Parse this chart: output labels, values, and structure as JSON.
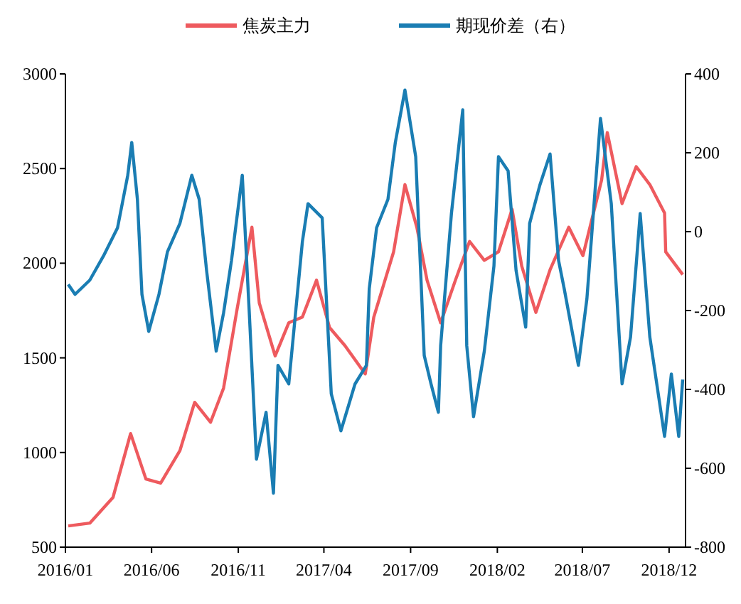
{
  "chart_data": {
    "type": "line",
    "legend": "top",
    "grid": false,
    "line_style": "solid",
    "xlim": [
      "2016-01-01",
      "2018-12-30"
    ],
    "xticks": [
      {
        "value": "2016-01",
        "label": "2016/01"
      },
      {
        "value": "2016-06",
        "label": "2016/06"
      },
      {
        "value": "2016-11",
        "label": "2016/11"
      },
      {
        "value": "2017-04",
        "label": "2017/04"
      },
      {
        "value": "2017-09",
        "label": "2017/09"
      },
      {
        "value": "2018-02",
        "label": "2018/02"
      },
      {
        "value": "2018-07",
        "label": "2018/07"
      },
      {
        "value": "2018-12",
        "label": "2018/12"
      }
    ],
    "ylim": [
      500,
      3000
    ],
    "yticks": [
      500,
      1000,
      1500,
      2000,
      2500,
      3000
    ],
    "y2lim": [
      -800,
      400
    ],
    "y2ticks": [
      -800,
      -600,
      -400,
      -200,
      0,
      200,
      400
    ],
    "series": [
      {
        "name": "焦炭主力",
        "color": "#ee5a5e",
        "x": [
          "2016-01-06",
          "2016-02-13",
          "2016-03-25",
          "2016-04-25",
          "2016-05-22",
          "2016-06-17",
          "2016-07-21",
          "2016-08-16",
          "2016-09-13",
          "2016-10-06",
          "2016-10-30",
          "2016-11-25",
          "2016-12-08",
          "2017-01-05",
          "2017-01-29",
          "2017-02-22",
          "2017-03-19",
          "2017-04-11",
          "2017-05-08",
          "2017-06-13",
          "2017-06-28",
          "2017-08-02",
          "2017-08-22",
          "2017-09-12",
          "2017-09-30",
          "2017-10-24",
          "2017-11-19",
          "2017-12-14",
          "2018-01-09",
          "2018-02-03",
          "2018-02-27",
          "2018-03-16",
          "2018-04-10",
          "2018-05-05",
          "2018-06-07",
          "2018-07-02",
          "2018-08-04",
          "2018-08-14",
          "2018-09-09",
          "2018-10-04",
          "2018-10-28",
          "2018-11-23",
          "2018-11-25",
          "2018-12-25"
        ],
        "values": [
          612,
          627,
          763,
          1100,
          860,
          838,
          1010,
          1265,
          1160,
          1340,
          1760,
          2190,
          1790,
          1510,
          1685,
          1715,
          1910,
          1660,
          1565,
          1415,
          1715,
          2060,
          2415,
          2190,
          1910,
          1685,
          1910,
          2115,
          2015,
          2060,
          2285,
          1985,
          1740,
          1965,
          2190,
          2040,
          2440,
          2690,
          2315,
          2510,
          2415,
          2265,
          2060,
          1940
        ]
      },
      {
        "name": "期现价差（右）",
        "color": "#1a7db3",
        "axis": "y2",
        "x": [
          "2016-01-06",
          "2016-01-18",
          "2016-02-13",
          "2016-03-08",
          "2016-04-02",
          "2016-04-20",
          "2016-04-27",
          "2016-05-07",
          "2016-05-15",
          "2016-05-27",
          "2016-06-14",
          "2016-06-29",
          "2016-07-21",
          "2016-08-11",
          "2016-08-24",
          "2016-09-06",
          "2016-09-23",
          "2016-10-06",
          "2016-10-20",
          "2016-11-08",
          "2016-11-20",
          "2016-12-03",
          "2016-12-20",
          "2017-01-02",
          "2017-01-10",
          "2017-01-29",
          "2017-02-22",
          "2017-03-04",
          "2017-03-29",
          "2017-04-14",
          "2017-05-01",
          "2017-05-26",
          "2017-06-15",
          "2017-06-20",
          "2017-07-03",
          "2017-07-23",
          "2017-08-05",
          "2017-08-22",
          "2017-09-10",
          "2017-09-25",
          "2017-10-07",
          "2017-10-20",
          "2017-10-24",
          "2017-11-12",
          "2017-12-02",
          "2017-12-09",
          "2017-12-21",
          "2018-01-09",
          "2018-01-26",
          "2018-02-03",
          "2018-02-20",
          "2018-03-06",
          "2018-03-23",
          "2018-03-30",
          "2018-04-17",
          "2018-05-05",
          "2018-05-20",
          "2018-05-30",
          "2018-06-24",
          "2018-07-09",
          "2018-08-02",
          "2018-08-21",
          "2018-09-09",
          "2018-09-24",
          "2018-10-11",
          "2018-10-28",
          "2018-11-23",
          "2018-12-05",
          "2018-12-18",
          "2018-12-25"
        ],
        "values": [
          -134,
          -159,
          -123,
          -62,
          10,
          143,
          226,
          82,
          -159,
          -253,
          -159,
          -51,
          21,
          143,
          82,
          -98,
          -303,
          -206,
          -73,
          143,
          -195,
          -577,
          -458,
          -663,
          -339,
          -386,
          -26,
          71,
          35,
          -411,
          -505,
          -386,
          -339,
          -145,
          10,
          82,
          226,
          359,
          190,
          -314,
          -386,
          -458,
          -289,
          46,
          309,
          -289,
          -469,
          -303,
          -87,
          190,
          154,
          -98,
          -242,
          21,
          118,
          197,
          -73,
          -145,
          -339,
          -170,
          287,
          71,
          -386,
          -267,
          46,
          -267,
          -519,
          -361,
          -519,
          -375
        ]
      }
    ]
  }
}
